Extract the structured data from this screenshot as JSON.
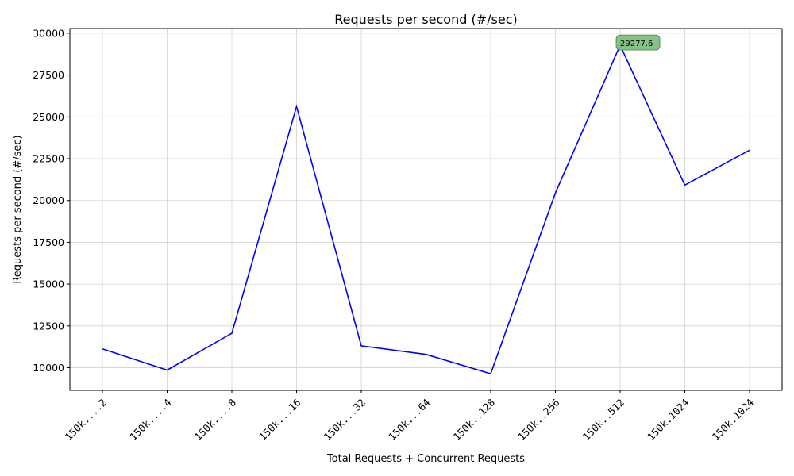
{
  "chart_data": {
    "type": "line",
    "title": "Requests per second (#/sec)",
    "xlabel": "Total Requests + Concurrent Requests",
    "ylabel": "Requests per second (#/sec)",
    "categories": [
      "150k....2",
      "150k....4",
      "150k....8",
      "150k...16",
      "150k...32",
      "150k...64",
      "150k..128",
      "150k..256",
      "150k..512",
      "150k.1024",
      "150k.1024"
    ],
    "series": [
      {
        "color": "#0000ff",
        "values": [
          11130,
          9860,
          12060,
          25620,
          11310,
          10800,
          9640,
          20450,
          29277.6,
          20920,
          23010
        ]
      }
    ],
    "ylim": [
      8650,
      30280
    ],
    "yticks": [
      10000,
      12500,
      15000,
      17500,
      20000,
      22500,
      25000,
      27500,
      30000
    ],
    "grid": true,
    "annotation": {
      "text": "29277.6",
      "category_index": 8,
      "value": 29277.6,
      "marker_color": "#008000",
      "box_color": "#7fbf7f"
    }
  }
}
